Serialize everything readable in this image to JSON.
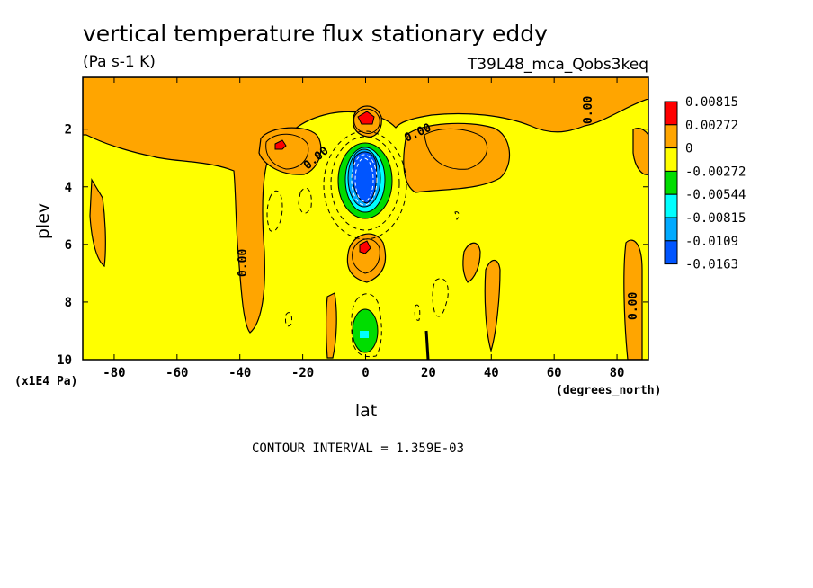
{
  "chart_data": {
    "type": "heatmap",
    "title": "vertical temperature flux stationary eddy",
    "units": "(Pa s-1 K)",
    "run_label": "T39L48_mca_Qobs3keq",
    "xlabel": "lat",
    "ylabel": "plev",
    "x_unit_label": "(degrees_north)",
    "y_unit_label": "(x1E4 Pa)",
    "xlim": [
      -90,
      90
    ],
    "ylim": [
      10,
      0.2
    ],
    "x_ticks": [
      -80,
      -60,
      -40,
      -20,
      0,
      20,
      40,
      60,
      80
    ],
    "y_ticks": [
      2,
      4,
      6,
      8,
      10
    ],
    "contour_interval_label": "CONTOUR INTERVAL = 1.359E-03",
    "contour_labels": [
      "0.00",
      "0.00",
      "0.00",
      "0.00",
      "0.00"
    ],
    "legend": {
      "levels": [
        "0.00815",
        "0.00272",
        "0",
        "-0.00272",
        "-0.00544",
        "-0.00815",
        "-0.0109",
        "-0.0163"
      ],
      "colors": [
        "#ff0000",
        "#ffa500",
        "#ffff00",
        "#00dd00",
        "#00ffff",
        "#00aaff",
        "#0055ff"
      ]
    },
    "regions": [
      {
        "label": "positive band near top",
        "lat": [
          -90,
          88
        ],
        "plev": [
          0.2,
          1.4
        ],
        "band": "0 to 0.00272"
      },
      {
        "label": "SH tongue",
        "lat": [
          -48,
          -38
        ],
        "plev": [
          0.2,
          8.8
        ],
        "band": "0 to 0.00272"
      },
      {
        "label": "SH midlatitude max",
        "lat": [
          -30,
          -20
        ],
        "plev": [
          2.0,
          3.4
        ],
        "band": "0.00815"
      },
      {
        "label": "upper equatorial max",
        "lat": [
          -4,
          4
        ],
        "plev": [
          1.2,
          1.8
        ],
        "band": "0.00815"
      },
      {
        "label": "equatorial upward-flux minimum",
        "lat": [
          -8,
          8
        ],
        "plev": [
          2.4,
          5.0
        ],
        "band": "-0.0163"
      },
      {
        "label": "mid equatorial max",
        "lat": [
          -2,
          3
        ],
        "plev": [
          5.8,
          6.4
        ],
        "band": "0.00815"
      },
      {
        "label": "lower equatorial minimum",
        "lat": [
          -4,
          4
        ],
        "plev": [
          8.2,
          9.8
        ],
        "band": "-0.00815"
      },
      {
        "label": "NH midlatitude positive",
        "lat": [
          10,
          35
        ],
        "plev": [
          1.2,
          3.6
        ],
        "band": "0 to 0.00272"
      },
      {
        "label": "NH polar positive",
        "lat": [
          78,
          90
        ],
        "plev": [
          2.0,
          10.0
        ],
        "band": "0 to 0.00272"
      }
    ]
  }
}
